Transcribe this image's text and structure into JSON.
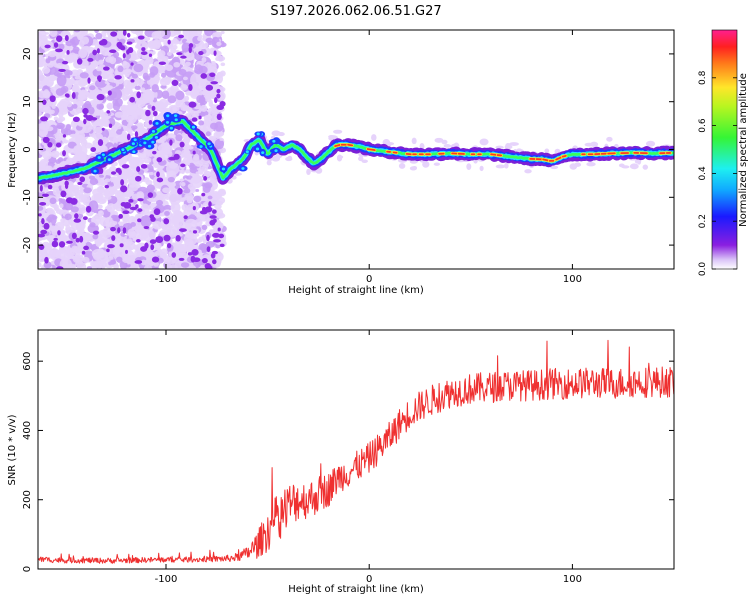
{
  "title": "S197.2026.062.06.51.G27",
  "colors": {
    "snr_line": "#ef3030",
    "trace": [
      "#7b1fd6",
      "#1a3cff",
      "#22e0ff",
      "#39ff5a",
      "#ffe62a",
      "#ff3b1f"
    ],
    "noise_light": "#e6d3fb",
    "noise_mid": "#c59cf5",
    "noise_dark": "#8a2be2"
  },
  "chart_data": [
    {
      "type": "heatmap",
      "title": "S197.2026.062.06.51.G27",
      "xlabel": "Height of straight line (km)",
      "ylabel": "Frequency (Hz)",
      "xlim": [
        -163,
        150
      ],
      "ylim": [
        -25,
        25
      ],
      "xticks": [
        -100,
        0,
        100
      ],
      "xtick_labels": [
        "-100",
        "0",
        "100"
      ],
      "yticks": [
        -20,
        -10,
        0,
        10,
        20
      ],
      "ytick_labels": [
        "-20",
        "-10",
        "0",
        "10",
        "20"
      ],
      "noise_region_x": [
        -163,
        -72
      ],
      "ridge": {
        "x": [
          -163,
          -150,
          -140,
          -130,
          -120,
          -110,
          -100,
          -92,
          -85,
          -78,
          -72,
          -68,
          -62,
          -58,
          -54,
          -50,
          -46,
          -42,
          -38,
          -34,
          -30,
          -27,
          -24,
          -20,
          -16,
          -10,
          -4,
          0,
          10,
          20,
          30,
          40,
          50,
          60,
          70,
          80,
          85,
          90,
          95,
          100,
          110,
          120,
          130,
          140,
          150
        ],
        "y": [
          -6,
          -5,
          -4,
          -2,
          0,
          2,
          5,
          6,
          3,
          0,
          -6,
          -4,
          -2,
          1,
          2,
          -1,
          1,
          0,
          1,
          0,
          -2,
          -3,
          -2,
          -0.5,
          1,
          1,
          0.5,
          0,
          -0.5,
          -1,
          -1,
          -0.8,
          -1,
          -1,
          -1.5,
          -2,
          -2,
          -2.5,
          -1.5,
          -1,
          -1,
          -0.8,
          -0.7,
          -0.8,
          -0.7
        ]
      },
      "colorbar": {
        "label": "Normalized spectral amplitude",
        "range": [
          0,
          1
        ],
        "ticks": [
          0.0,
          0.2,
          0.4,
          0.6,
          0.8
        ],
        "tick_labels": [
          "0.0",
          "0.2",
          "0.4",
          "0.6",
          "0.8"
        ]
      }
    },
    {
      "type": "line",
      "xlabel": "Height of straight line (km)",
      "ylabel": "SNR (10 * v/v)",
      "xlim": [
        -163,
        150
      ],
      "ylim": [
        0,
        690
      ],
      "xticks": [
        -100,
        0,
        100
      ],
      "xtick_labels": [
        "-100",
        "0",
        "100"
      ],
      "yticks": [
        0,
        200,
        400,
        600
      ],
      "ytick_labels": [
        "0",
        "200",
        "400",
        "600"
      ],
      "series": [
        {
          "name": "SNR",
          "x": [
            -163,
            -150,
            -140,
            -130,
            -120,
            -110,
            -100,
            -90,
            -80,
            -70,
            -65,
            -60,
            -55,
            -50,
            -45,
            -40,
            -35,
            -30,
            -25,
            -20,
            -15,
            -10,
            -5,
            0,
            5,
            10,
            15,
            20,
            25,
            30,
            40,
            50,
            60,
            70,
            80,
            90,
            100,
            110,
            120,
            130,
            140,
            150
          ],
          "y": [
            28,
            25,
            25,
            24,
            25,
            26,
            27,
            27,
            28,
            30,
            34,
            45,
            70,
            110,
            150,
            180,
            200,
            200,
            215,
            230,
            265,
            280,
            300,
            320,
            350,
            380,
            420,
            450,
            470,
            485,
            510,
            520,
            525,
            530,
            530,
            535,
            535,
            538,
            535,
            540,
            540,
            540
          ],
          "noise": [
            8,
            8,
            8,
            8,
            8,
            8,
            8,
            8,
            8,
            10,
            12,
            20,
            40,
            60,
            70,
            70,
            60,
            55,
            55,
            50,
            45,
            45,
            45,
            45,
            45,
            45,
            45,
            45,
            45,
            45,
            45,
            45,
            45,
            45,
            45,
            45,
            45,
            45,
            45,
            45,
            45,
            45
          ]
        }
      ]
    }
  ]
}
